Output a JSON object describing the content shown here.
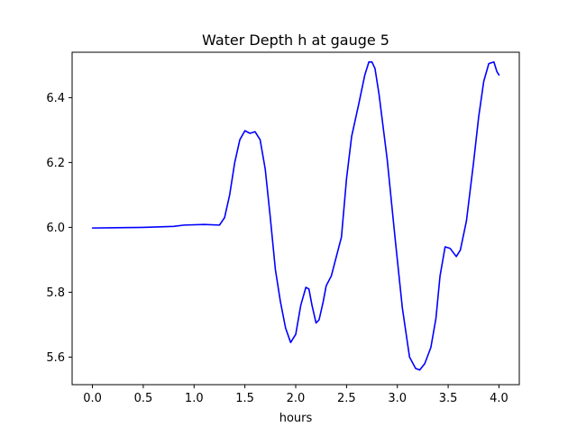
{
  "chart_data": {
    "type": "line",
    "title": "Water Depth h at gauge 5",
    "xlabel": "hours",
    "ylabel": "",
    "xlim": [
      -0.2,
      4.2
    ],
    "ylim": [
      5.515,
      6.54
    ],
    "xticks": [
      0.0,
      0.5,
      1.0,
      1.5,
      2.0,
      2.5,
      3.0,
      3.5,
      4.0
    ],
    "xtick_labels": [
      "0.0",
      "0.5",
      "1.0",
      "1.5",
      "2.0",
      "2.5",
      "3.0",
      "3.5",
      "4.0"
    ],
    "yticks": [
      5.6,
      5.8,
      6.0,
      6.2,
      6.4
    ],
    "ytick_labels": [
      "5.6",
      "5.8",
      "6.0",
      "6.2",
      "6.4"
    ],
    "grid": false,
    "series": [
      {
        "color": "#0000ff",
        "x": [
          0.0,
          0.5,
          0.8,
          0.9,
          1.1,
          1.25,
          1.3,
          1.35,
          1.4,
          1.45,
          1.5,
          1.55,
          1.6,
          1.65,
          1.7,
          1.75,
          1.8,
          1.85,
          1.9,
          1.95,
          2.0,
          2.05,
          2.1,
          2.13,
          2.16,
          2.2,
          2.23,
          2.27,
          2.3,
          2.35,
          2.45,
          2.5,
          2.55,
          2.62,
          2.68,
          2.72,
          2.75,
          2.78,
          2.82,
          2.9,
          2.98,
          3.05,
          3.12,
          3.18,
          3.22,
          3.27,
          3.33,
          3.38,
          3.42,
          3.47,
          3.52,
          3.58,
          3.62,
          3.68,
          3.75,
          3.8,
          3.85,
          3.9,
          3.95,
          3.98,
          4.0
        ],
        "y": [
          5.998,
          6.0,
          6.003,
          6.007,
          6.009,
          6.007,
          6.03,
          6.1,
          6.2,
          6.27,
          6.298,
          6.29,
          6.295,
          6.27,
          6.18,
          6.03,
          5.87,
          5.77,
          5.69,
          5.645,
          5.67,
          5.76,
          5.815,
          5.81,
          5.76,
          5.705,
          5.715,
          5.77,
          5.82,
          5.85,
          5.97,
          6.15,
          6.28,
          6.38,
          6.47,
          6.51,
          6.51,
          6.49,
          6.41,
          6.21,
          5.96,
          5.75,
          5.6,
          5.565,
          5.56,
          5.58,
          5.63,
          5.72,
          5.85,
          5.94,
          5.935,
          5.91,
          5.93,
          6.02,
          6.2,
          6.34,
          6.45,
          6.505,
          6.51,
          6.48,
          6.47
        ]
      }
    ]
  }
}
